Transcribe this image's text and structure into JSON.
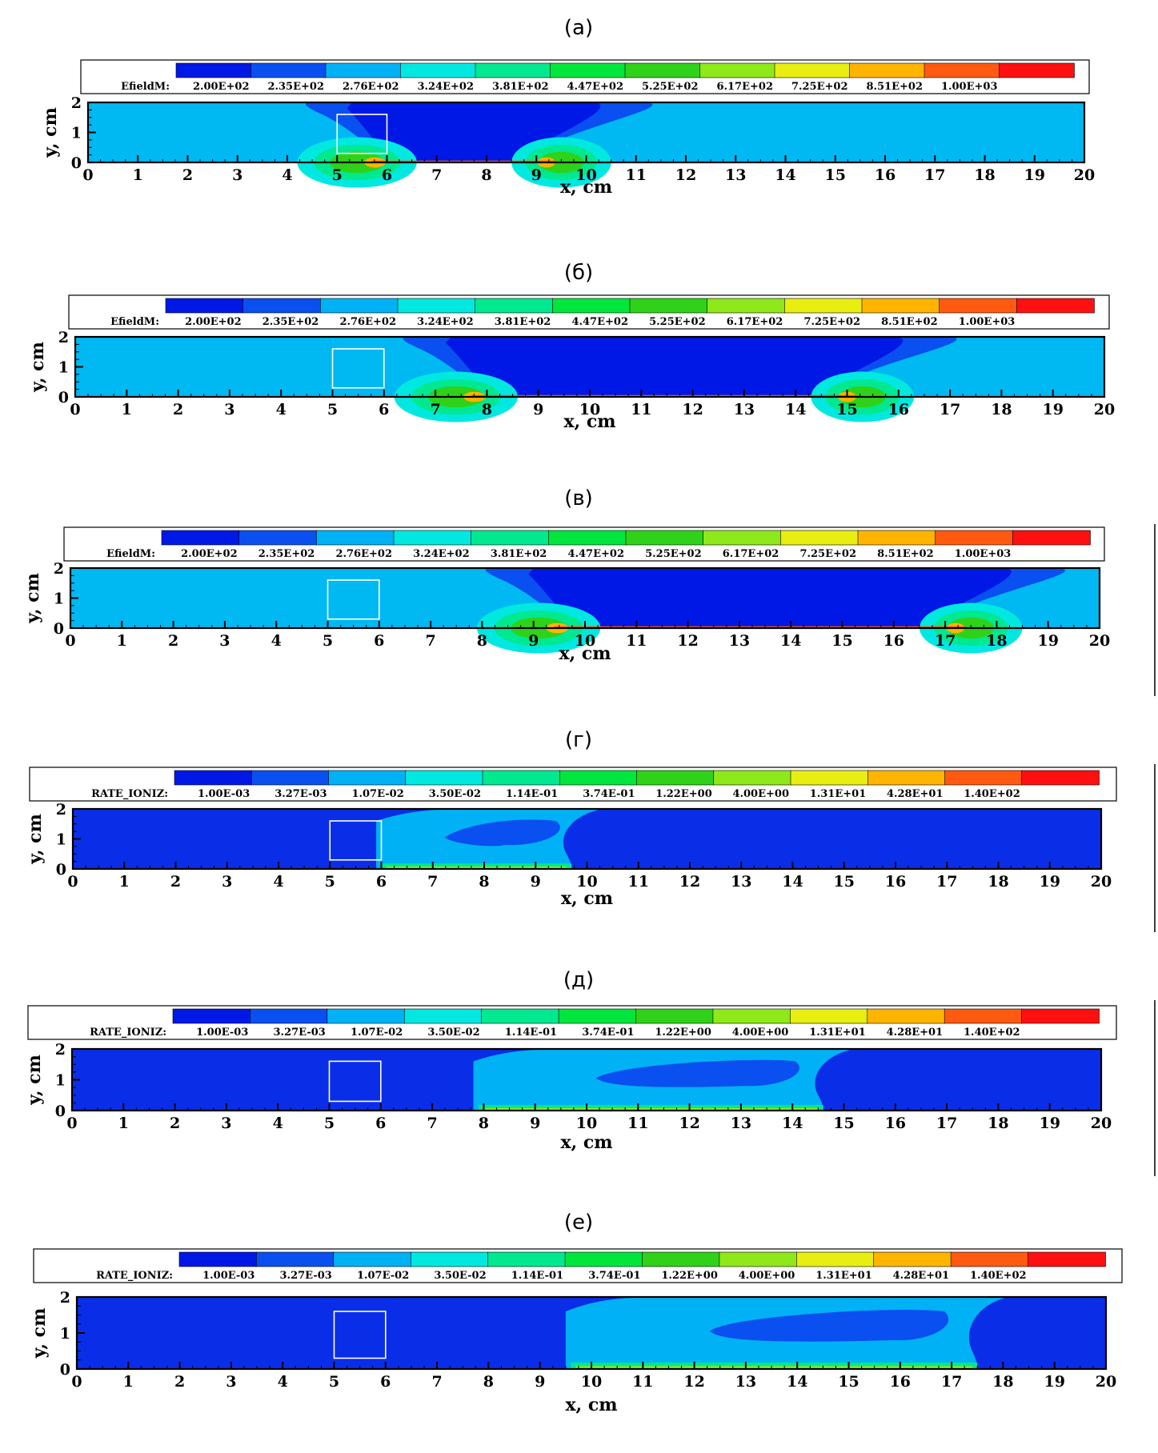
{
  "chart_data": [
    {
      "type": "heatmap",
      "panel_label": "(а)",
      "legend_var": "EfieldM:",
      "legend_values": [
        "2.00E+02",
        "2.35E+02",
        "2.76E+02",
        "3.24E+02",
        "3.81E+02",
        "4.47E+02",
        "5.25E+02",
        "6.17E+02",
        "7.25E+02",
        "8.51E+02",
        "1.00E+03"
      ],
      "xlabel": "x, cm",
      "ylabel": "y, cm",
      "xlim": [
        0,
        20
      ],
      "ylim": [
        0,
        2
      ],
      "xticks": [
        0,
        1,
        2,
        3,
        4,
        5,
        6,
        7,
        8,
        9,
        10,
        11,
        12,
        13,
        14,
        15,
        16,
        17,
        18,
        19,
        20
      ],
      "yticks": [
        0,
        1,
        2
      ],
      "marker_box": {
        "x0": 5,
        "x1": 6,
        "y0": 0.3,
        "y1": 1.6
      },
      "field": {
        "kind": "efield",
        "front_left": 5.9,
        "front_right": 9.2,
        "base_level": 2
      }
    },
    {
      "type": "heatmap",
      "panel_label": "(б)",
      "legend_var": "EfieldM:",
      "legend_values": [
        "2.00E+02",
        "2.35E+02",
        "2.76E+02",
        "3.24E+02",
        "3.81E+02",
        "4.47E+02",
        "5.25E+02",
        "6.17E+02",
        "7.25E+02",
        "8.51E+02",
        "1.00E+03"
      ],
      "xlabel": "x, cm",
      "ylabel": "y, cm",
      "xlim": [
        0,
        20
      ],
      "ylim": [
        0,
        2
      ],
      "xticks": [
        0,
        1,
        2,
        3,
        4,
        5,
        6,
        7,
        8,
        9,
        10,
        11,
        12,
        13,
        14,
        15,
        16,
        17,
        18,
        19,
        20
      ],
      "yticks": [
        0,
        1,
        2
      ],
      "marker_box": {
        "x0": 5,
        "x1": 6,
        "y0": 0.3,
        "y1": 1.6
      },
      "field": {
        "kind": "efield",
        "front_left": 7.9,
        "front_right": 15.0,
        "base_level": 2
      }
    },
    {
      "type": "heatmap",
      "panel_label": "(в)",
      "legend_var": "EfieldM:",
      "legend_values": [
        "2.00E+02",
        "2.35E+02",
        "2.76E+02",
        "3.24E+02",
        "3.81E+02",
        "4.47E+02",
        "5.25E+02",
        "6.17E+02",
        "7.25E+02",
        "8.51E+02",
        "1.00E+03"
      ],
      "xlabel": "x, cm",
      "ylabel": "y, cm",
      "xlim": [
        0,
        20
      ],
      "ylim": [
        0,
        2
      ],
      "xticks": [
        0,
        1,
        2,
        3,
        4,
        5,
        6,
        7,
        8,
        9,
        10,
        11,
        12,
        13,
        14,
        15,
        16,
        17,
        18,
        19,
        20
      ],
      "yticks": [
        0,
        1,
        2
      ],
      "marker_box": {
        "x0": 5,
        "x1": 6,
        "y0": 0.3,
        "y1": 1.6
      },
      "field": {
        "kind": "efield",
        "front_left": 9.6,
        "front_right": 17.2,
        "base_level": 2
      }
    },
    {
      "type": "heatmap",
      "panel_label": "(г)",
      "legend_var": "RATE_IONIZ:",
      "legend_values": [
        "1.00E-03",
        "3.27E-03",
        "1.07E-02",
        "3.50E-02",
        "1.14E-01",
        "3.74E-01",
        "1.22E+00",
        "4.00E+00",
        "1.31E+01",
        "4.28E+01",
        "1.40E+02"
      ],
      "xlabel": "x, cm",
      "ylabel": "y, cm",
      "xlim": [
        0,
        20
      ],
      "ylim": [
        0,
        2
      ],
      "xticks": [
        0,
        1,
        2,
        3,
        4,
        5,
        6,
        7,
        8,
        9,
        10,
        11,
        12,
        13,
        14,
        15,
        16,
        17,
        18,
        19,
        20
      ],
      "yticks": [
        0,
        1,
        2
      ],
      "marker_box": {
        "x0": 5,
        "x1": 6,
        "y0": 0.3,
        "y1": 1.6
      },
      "field": {
        "kind": "ioniz",
        "front_left": 5.9,
        "front_right": 9.7,
        "base_level": 0
      }
    },
    {
      "type": "heatmap",
      "panel_label": "(д)",
      "legend_var": "RATE_IONIZ:",
      "legend_values": [
        "1.00E-03",
        "3.27E-03",
        "1.07E-02",
        "3.50E-02",
        "1.14E-01",
        "3.74E-01",
        "1.22E+00",
        "4.00E+00",
        "1.31E+01",
        "4.28E+01",
        "1.40E+02"
      ],
      "xlabel": "x, cm",
      "ylabel": "y, cm",
      "xlim": [
        0,
        20
      ],
      "ylim": [
        0,
        2
      ],
      "xticks": [
        0,
        1,
        2,
        3,
        4,
        5,
        6,
        7,
        8,
        9,
        10,
        11,
        12,
        13,
        14,
        15,
        16,
        17,
        18,
        19,
        20
      ],
      "yticks": [
        0,
        1,
        2
      ],
      "marker_box": {
        "x0": 5,
        "x1": 6,
        "y0": 0.3,
        "y1": 1.6
      },
      "field": {
        "kind": "ioniz",
        "front_left": 7.8,
        "front_right": 14.6,
        "base_level": 0
      }
    },
    {
      "type": "heatmap",
      "panel_label": "(е)",
      "legend_var": "RATE_IONIZ:",
      "legend_values": [
        "1.00E-03",
        "3.27E-03",
        "1.07E-02",
        "3.50E-02",
        "1.14E-01",
        "3.74E-01",
        "1.22E+00",
        "4.00E+00",
        "1.31E+01",
        "4.28E+01",
        "1.40E+02"
      ],
      "xlabel": "x, cm",
      "ylabel": "y, cm",
      "xlim": [
        0,
        20
      ],
      "ylim": [
        0,
        2
      ],
      "xticks": [
        0,
        1,
        2,
        3,
        4,
        5,
        6,
        7,
        8,
        9,
        10,
        11,
        12,
        13,
        14,
        15,
        16,
        17,
        18,
        19,
        20
      ],
      "yticks": [
        0,
        1,
        2
      ],
      "marker_box": {
        "x0": 5,
        "x1": 6,
        "y0": 0.3,
        "y1": 1.6
      },
      "field": {
        "kind": "ioniz",
        "front_left": 9.5,
        "front_right": 17.5,
        "base_level": 0
      }
    }
  ],
  "colors": {
    "levels": [
      "#0018e6",
      "#0a4ff0",
      "#00b2f5",
      "#00e8e0",
      "#00e890",
      "#00e63c",
      "#2fd218",
      "#8ee81a",
      "#e8ee10",
      "#ffb400",
      "#ff5a10",
      "#ff1010"
    ],
    "background_efield": "#00b8f2",
    "background_ioniz": "#0a2ee8",
    "marker_box": "#ffffff",
    "axis": "#000000"
  }
}
